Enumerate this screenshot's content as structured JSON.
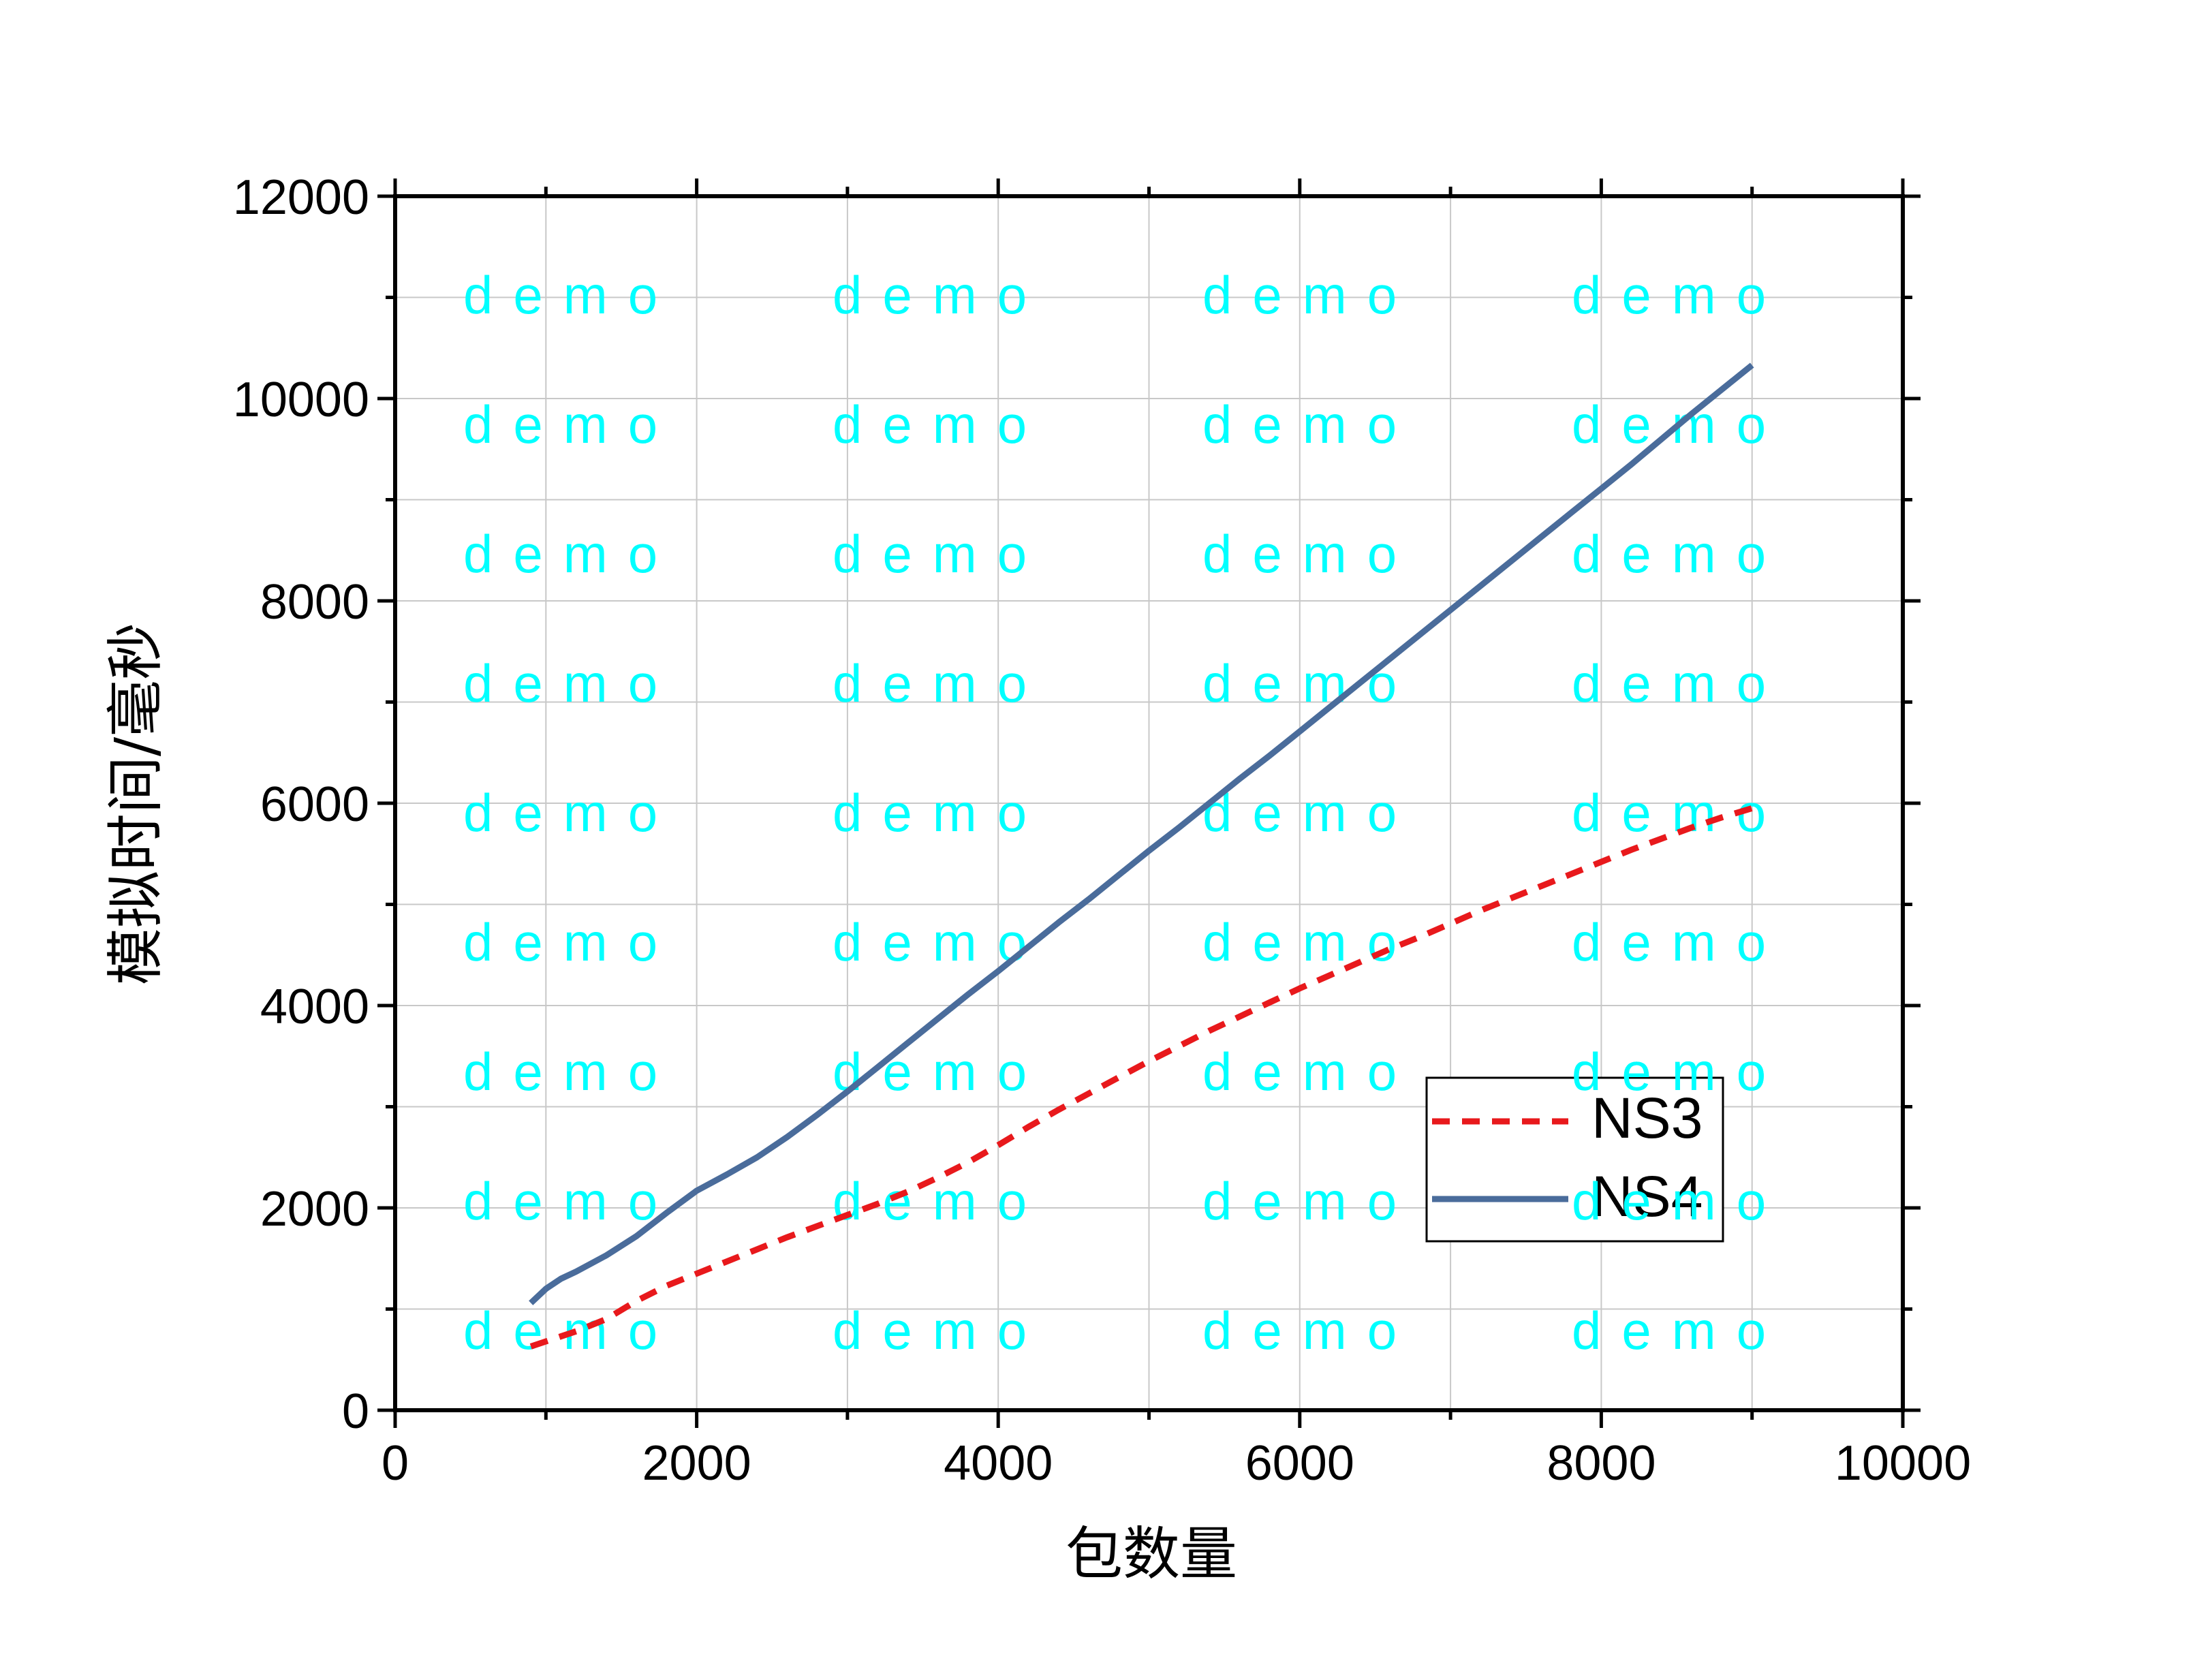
{
  "chart_data": {
    "type": "line",
    "xlabel": "包数量",
    "ylabel": "模拟时间/毫秒",
    "xlim": [
      0,
      10000
    ],
    "ylim": [
      0,
      12000
    ],
    "x_ticks": [
      "0",
      "2000",
      "4000",
      "6000",
      "8000",
      "10000"
    ],
    "y_ticks": [
      "0",
      "2000",
      "4000",
      "6000",
      "8000",
      "10000",
      "12000"
    ],
    "grid": true,
    "legend_position": "bottom-right",
    "watermark": "demo",
    "series": [
      {
        "name": "NS3",
        "color": "#e8191c",
        "style": "dashed",
        "x": [
          900,
          1000,
          1200,
          1400,
          1600,
          1800,
          2000,
          2200,
          2400,
          2600,
          2800,
          3000,
          3200,
          3400,
          3600,
          3800,
          4000,
          4200,
          4400,
          4600,
          4800,
          5000,
          5200,
          5400,
          5600,
          5800,
          6000,
          6200,
          6400,
          6600,
          6800,
          7000,
          7200,
          7400,
          7600,
          7800,
          8000,
          8200,
          8400,
          8600,
          8800,
          9000
        ],
        "y": [
          630,
          680,
          780,
          900,
          1080,
          1230,
          1350,
          1470,
          1590,
          1710,
          1820,
          1930,
          2040,
          2160,
          2300,
          2450,
          2620,
          2800,
          2970,
          3130,
          3290,
          3450,
          3600,
          3750,
          3890,
          4030,
          4170,
          4300,
          4430,
          4560,
          4680,
          4810,
          4940,
          5060,
          5180,
          5300,
          5420,
          5540,
          5650,
          5760,
          5860,
          5950
        ]
      },
      {
        "name": "NS4",
        "color": "#4a6c9b",
        "style": "solid",
        "x": [
          900,
          1000,
          1100,
          1200,
          1400,
          1600,
          1800,
          2000,
          2200,
          2400,
          2600,
          2800,
          3000,
          3200,
          3400,
          3600,
          3800,
          4000,
          4200,
          4400,
          4600,
          4800,
          5000,
          5200,
          5400,
          5600,
          5800,
          6000,
          6200,
          6400,
          6600,
          6800,
          7000,
          7200,
          7400,
          7600,
          7800,
          8000,
          8200,
          8400,
          8600,
          8800,
          9000
        ],
        "y": [
          1060,
          1200,
          1300,
          1370,
          1530,
          1720,
          1950,
          2170,
          2330,
          2500,
          2700,
          2920,
          3150,
          3390,
          3630,
          3870,
          4110,
          4340,
          4580,
          4820,
          5050,
          5290,
          5530,
          5760,
          6000,
          6240,
          6470,
          6710,
          6950,
          7190,
          7430,
          7670,
          7910,
          8150,
          8390,
          8630,
          8870,
          9110,
          9350,
          9600,
          9850,
          10090,
          10330
        ]
      }
    ]
  }
}
